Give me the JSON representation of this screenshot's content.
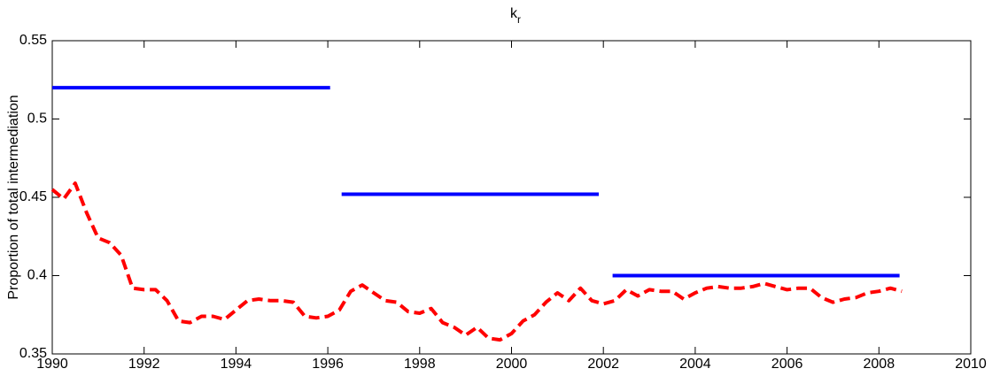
{
  "chart_data": {
    "type": "line",
    "title": "k",
    "title_subscript": "r",
    "y_label": "Proportion of total intermediation",
    "xlim": [
      1990,
      2010
    ],
    "xticks": [
      1990,
      1992,
      1994,
      1996,
      1998,
      2000,
      2002,
      2004,
      2006,
      2008,
      2010
    ],
    "ylim": [
      0.35,
      0.55
    ],
    "yticks": [
      0.35,
      0.4,
      0.45,
      0.5,
      0.55
    ],
    "grid": false,
    "series": [
      {
        "color": "#0000ff",
        "dash": false,
        "x": [
          1990,
          1996.05,
          1996.2,
          1996.3,
          2001.9,
          2002.05,
          2002.2,
          2008.45
        ],
        "values": [
          0.52,
          0.52,
          null,
          0.452,
          0.452,
          null,
          0.4,
          0.4
        ]
      },
      {
        "color": "#ff0000",
        "dash": true,
        "x": [
          1990,
          1990.25,
          1990.5,
          1990.75,
          1991,
          1991.25,
          1991.5,
          1991.75,
          1992,
          1992.25,
          1992.5,
          1992.75,
          1993,
          1993.25,
          1993.5,
          1993.75,
          1994,
          1994.25,
          1994.5,
          1994.75,
          1995,
          1995.25,
          1995.5,
          1995.75,
          1996,
          1996.25,
          1996.5,
          1996.75,
          1997,
          1997.25,
          1997.5,
          1997.75,
          1998,
          1998.25,
          1998.5,
          1998.75,
          1999,
          1999.25,
          1999.5,
          1999.75,
          2000,
          2000.25,
          2000.5,
          2000.75,
          2001,
          2001.25,
          2001.5,
          2001.75,
          2002,
          2002.25,
          2002.5,
          2002.75,
          2003,
          2003.25,
          2003.5,
          2003.75,
          2004,
          2004.25,
          2004.5,
          2004.75,
          2005,
          2005.25,
          2005.5,
          2005.75,
          2006,
          2006.25,
          2006.5,
          2006.75,
          2007,
          2007.25,
          2007.5,
          2007.75,
          2008,
          2008.25,
          2008.5
        ],
        "values": [
          0.455,
          0.449,
          0.459,
          0.44,
          0.424,
          0.421,
          0.413,
          0.392,
          0.391,
          0.391,
          0.384,
          0.371,
          0.37,
          0.374,
          0.374,
          0.372,
          0.378,
          0.384,
          0.385,
          0.384,
          0.384,
          0.383,
          0.374,
          0.373,
          0.374,
          0.378,
          0.39,
          0.394,
          0.389,
          0.384,
          0.383,
          0.377,
          0.376,
          0.379,
          0.37,
          0.367,
          0.362,
          0.367,
          0.36,
          0.359,
          0.363,
          0.371,
          0.375,
          0.383,
          0.389,
          0.384,
          0.392,
          0.384,
          0.382,
          0.384,
          0.391,
          0.387,
          0.391,
          0.39,
          0.39,
          0.385,
          0.389,
          0.392,
          0.393,
          0.392,
          0.392,
          0.393,
          0.395,
          0.393,
          0.391,
          0.392,
          0.392,
          0.386,
          0.383,
          0.385,
          0.386,
          0.389,
          0.39,
          0.392,
          0.39
        ]
      }
    ]
  }
}
